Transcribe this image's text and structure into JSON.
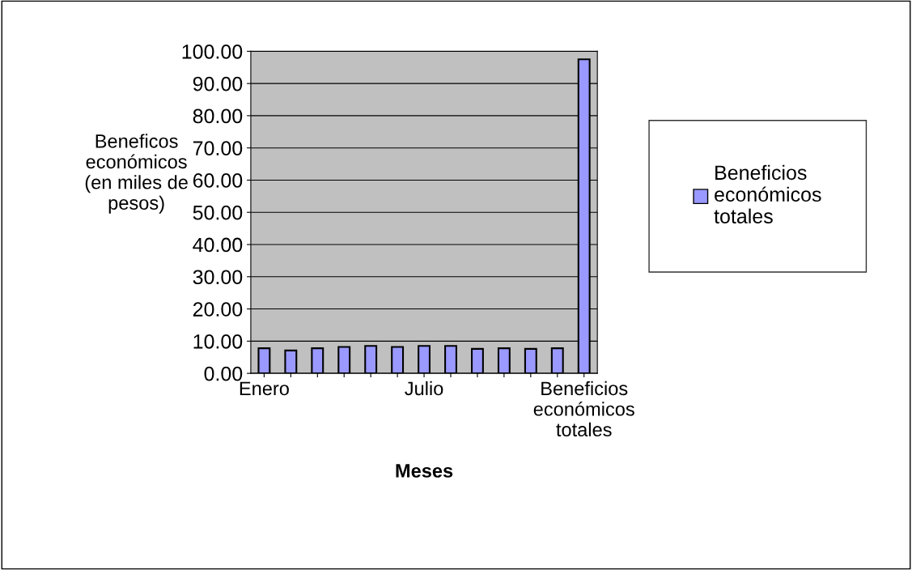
{
  "chart_data": {
    "type": "bar",
    "xlabel": "Meses",
    "ylabel": "Beneficos\neconómicos\n(en miles de\npesos)",
    "categories": [
      "Enero",
      null,
      null,
      null,
      null,
      null,
      "Julio",
      null,
      null,
      null,
      null,
      null,
      "Beneficios\neconómicos\ntotales"
    ],
    "series": [
      {
        "name": "Beneficios\neconómicos\ntotales",
        "color": "#9999ff",
        "values": [
          7.8,
          7.1,
          7.8,
          8.2,
          8.5,
          8.2,
          8.5,
          8.5,
          7.6,
          7.8,
          7.6,
          7.8,
          97.5
        ]
      }
    ],
    "ylim": [
      0,
      100
    ],
    "yticks": [
      {
        "value": 0,
        "label": "0.00"
      },
      {
        "value": 10,
        "label": "10.00"
      },
      {
        "value": 20,
        "label": "20.00"
      },
      {
        "value": 30,
        "label": "30.00"
      },
      {
        "value": 40,
        "label": "40.00"
      },
      {
        "value": 50,
        "label": "50.00"
      },
      {
        "value": 60,
        "label": "60.00"
      },
      {
        "value": 70,
        "label": "70.00"
      },
      {
        "value": 80,
        "label": "80.00"
      },
      {
        "value": 90,
        "label": "90.00"
      },
      {
        "value": 100,
        "label": "100.00"
      }
    ],
    "grid": "y",
    "legend": "right"
  }
}
